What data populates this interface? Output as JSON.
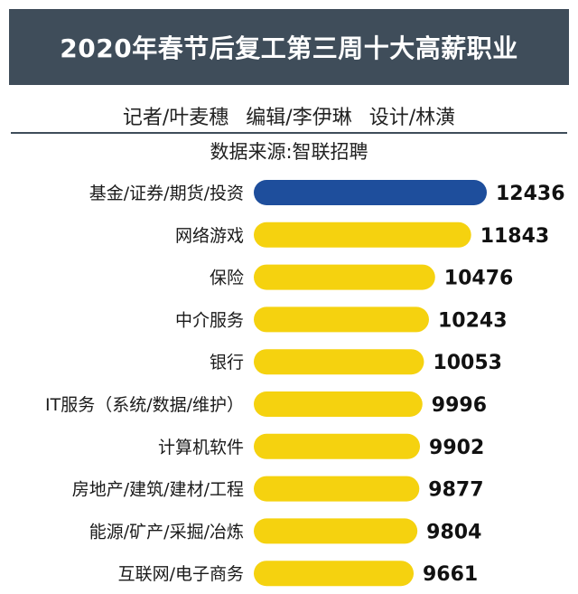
{
  "header": {
    "title": "2020年春节后复工第三周十大高薪职业"
  },
  "credits": [
    "记者/叶麦穗",
    "编辑/李伊琳",
    "设计/林潢"
  ],
  "source": "数据来源:智联招聘",
  "colors": {
    "header_bg": "#3f4d5a",
    "highlight_bar": "#1e4e9c",
    "bar": "#f5d20f"
  },
  "chart_data": {
    "type": "bar",
    "orientation": "horizontal",
    "categories": [
      "基金/证券/期货/投资",
      "网络游戏",
      "保险",
      "中介服务",
      "银行",
      "IT服务（系统/数据/维护）",
      "计算机软件",
      "房地产/建筑/建材/工程",
      "能源/矿产/采掘/冶炼",
      "互联网/电子商务"
    ],
    "values": [
      12436,
      11843,
      10476,
      10243,
      10053,
      9996,
      9902,
      9877,
      9804,
      9661
    ],
    "highlight_index": 0,
    "title": "2020年春节后复工第三周十大高薪职业",
    "grid": false
  }
}
